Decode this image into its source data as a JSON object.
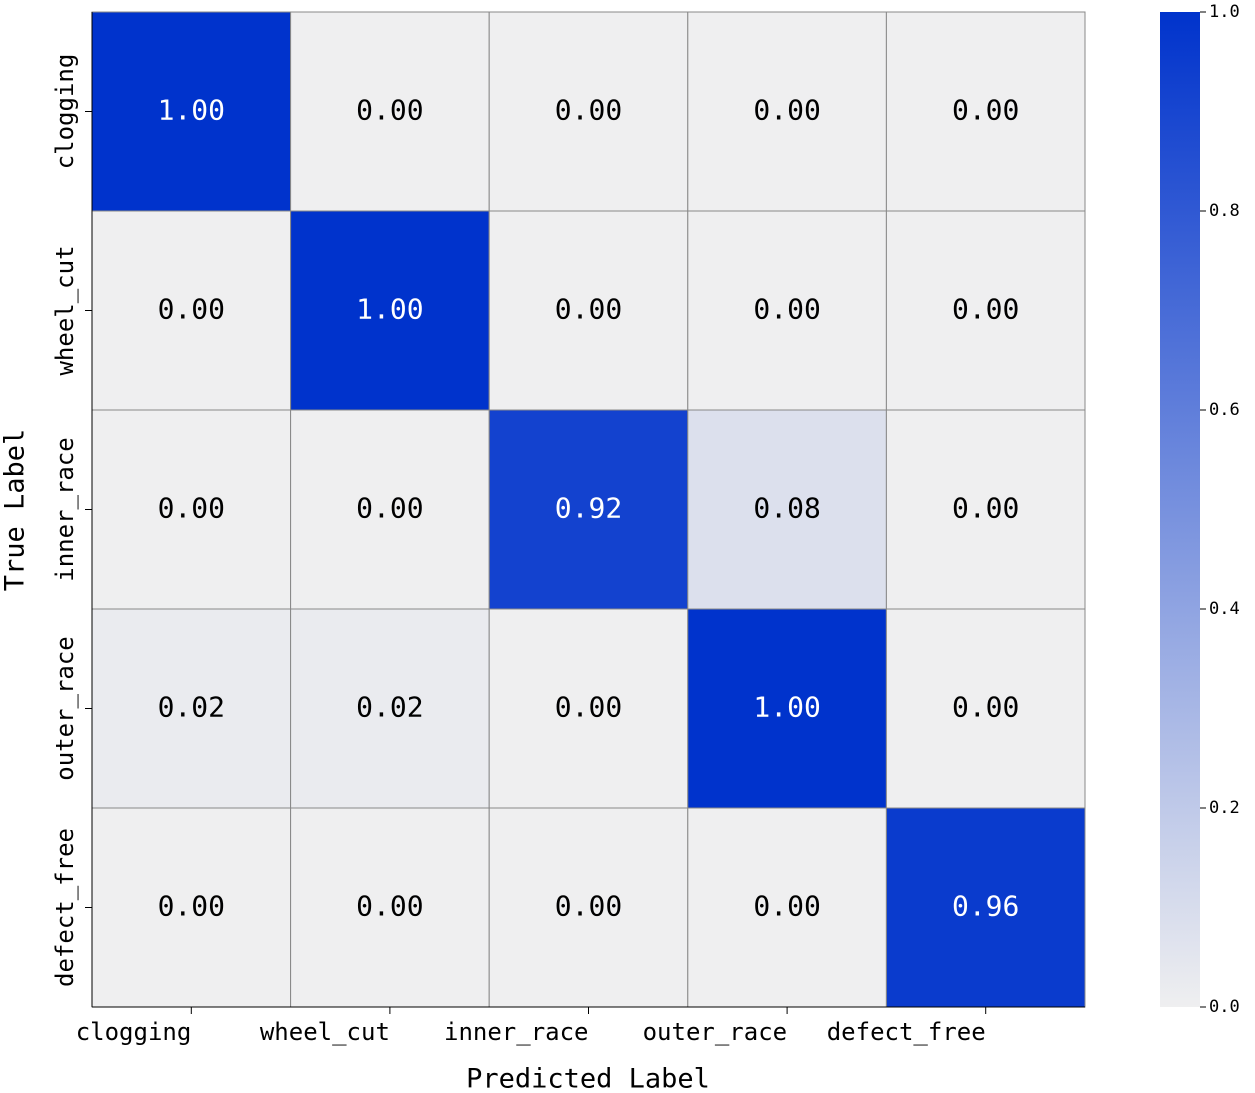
{
  "chart_data": {
    "type": "heatmap",
    "x_label": "Predicted Label",
    "y_label": "True Label",
    "x_categories": [
      "clogging",
      "wheel_cut",
      "inner_race",
      "outer_race",
      "defect_free"
    ],
    "y_categories": [
      "clogging",
      "wheel_cut",
      "inner_race",
      "outer_race",
      "defect_free"
    ],
    "values": [
      [
        1,
        0,
        0,
        0,
        0
      ],
      [
        0,
        1,
        0,
        0,
        0
      ],
      [
        0,
        0,
        0.92,
        0.08,
        0
      ],
      [
        0.02,
        0.02,
        0,
        1,
        0
      ],
      [
        0,
        0,
        0,
        0,
        0.96
      ]
    ],
    "value_labels": [
      [
        "1.00",
        "0.00",
        "0.00",
        "0.00",
        "0.00"
      ],
      [
        "0.00",
        "1.00",
        "0.00",
        "0.00",
        "0.00"
      ],
      [
        "0.00",
        "0.00",
        "0.92",
        "0.08",
        "0.00"
      ],
      [
        "0.02",
        "0.02",
        "0.00",
        "1.00",
        "0.00"
      ],
      [
        "0.00",
        "0.00",
        "0.00",
        "0.00",
        "0.96"
      ]
    ],
    "zlim": [
      0,
      1
    ],
    "zticks": [
      {
        "value": 0,
        "label": "0.0"
      },
      0.2,
      0.4,
      0.6,
      0.8,
      {
        "value": 1,
        "label": "1.0"
      }
    ],
    "cmap": [
      "#efeff0",
      "#0033cc"
    ]
  }
}
